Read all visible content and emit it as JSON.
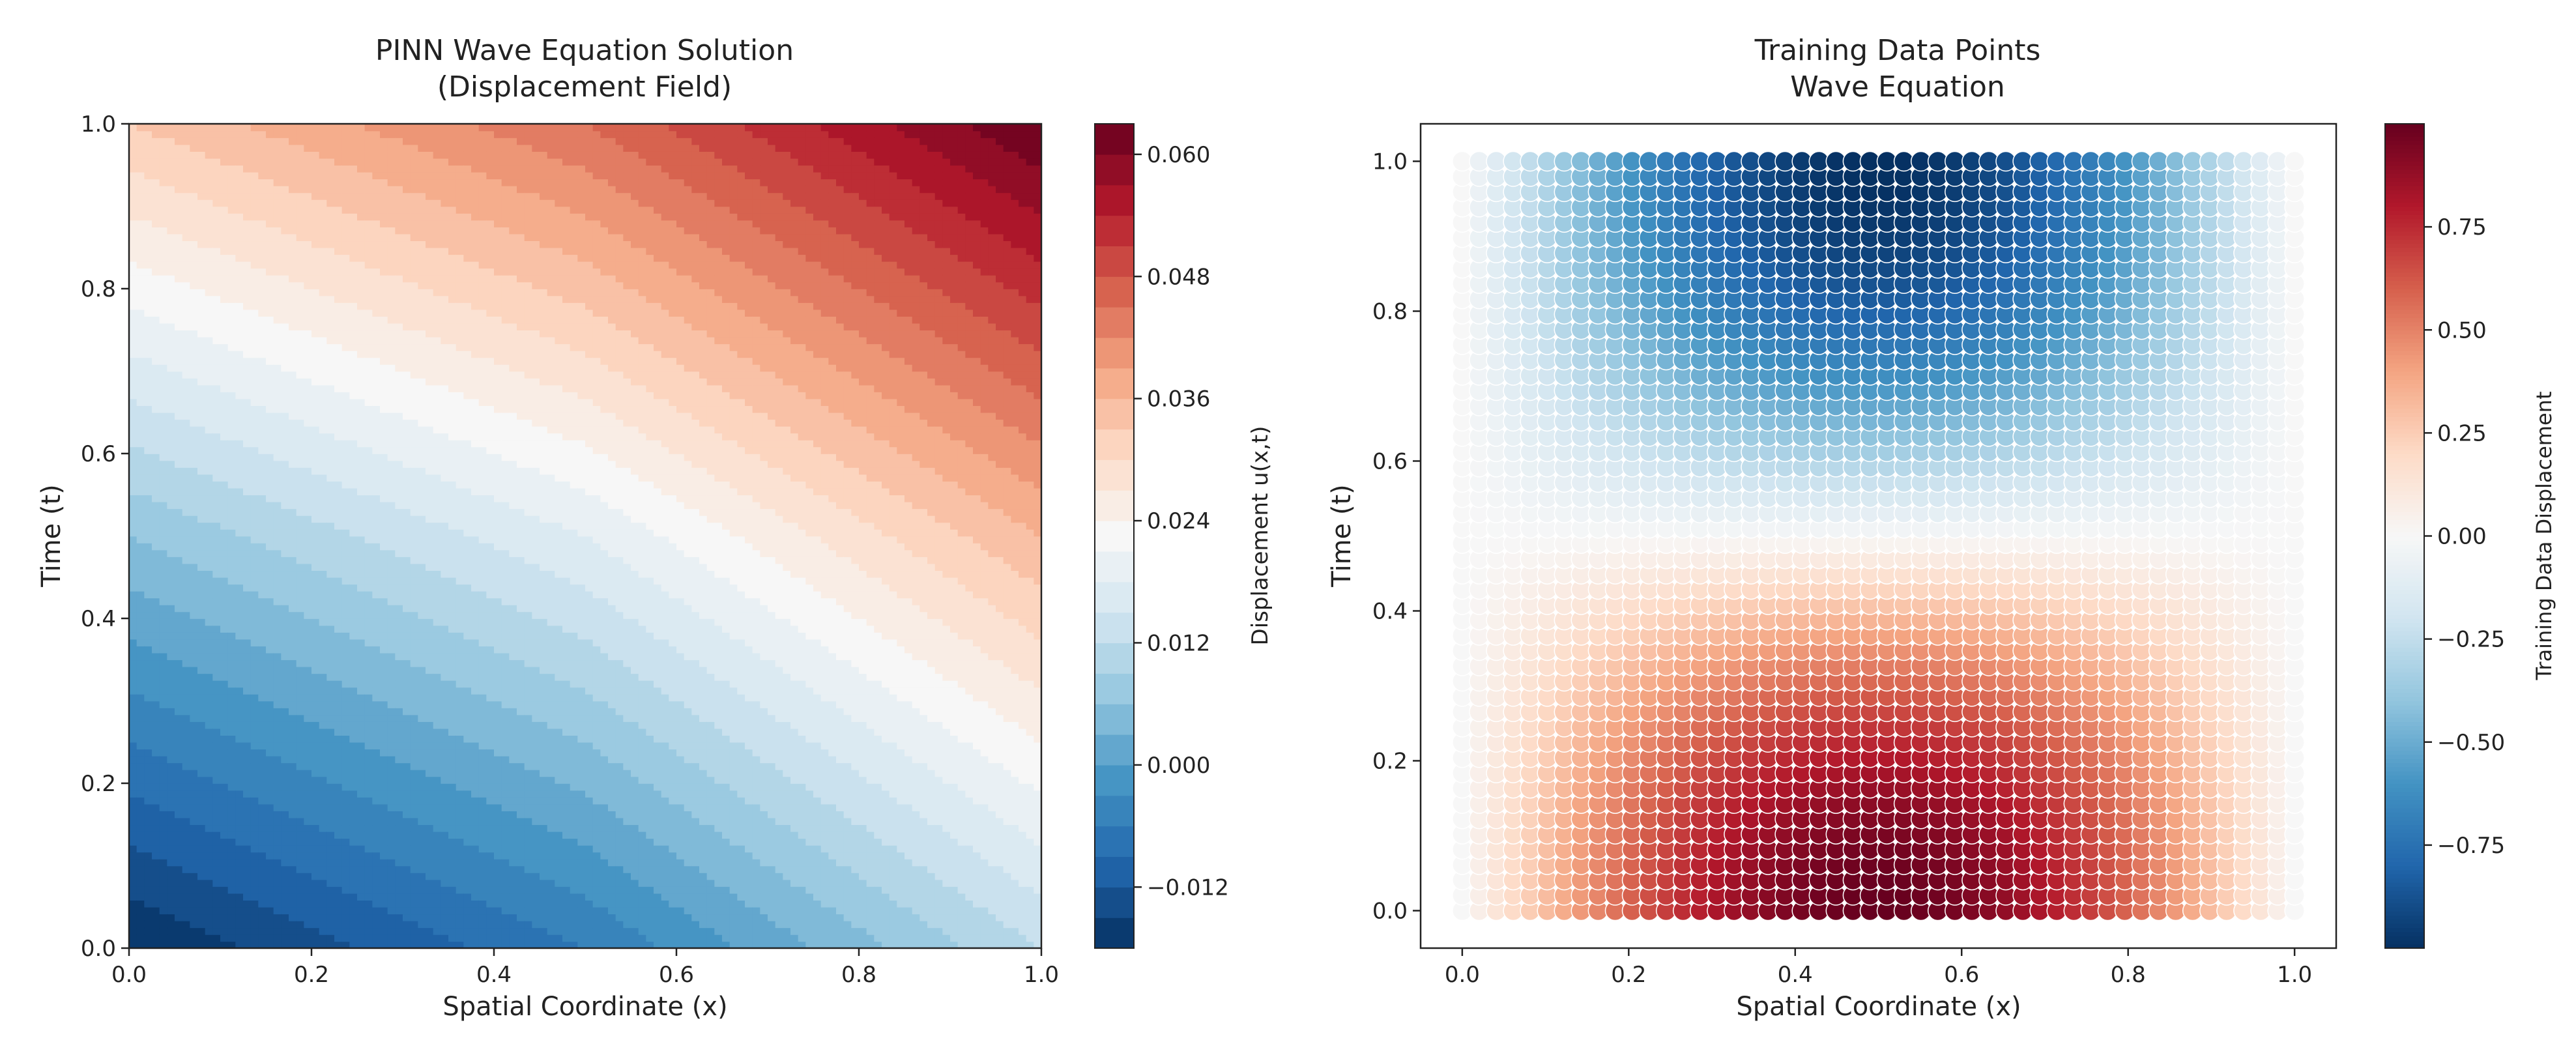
{
  "chart_data": [
    {
      "type": "heatmap",
      "title": "PINN Wave Equation Solution\n(Displacement Field)",
      "xlabel": "Spatial Coordinate (x)",
      "ylabel": "Time (t)",
      "xlim": [
        0.0,
        1.0
      ],
      "ylim": [
        0.0,
        1.0
      ],
      "x_ticks": [
        "0.0",
        "0.2",
        "0.4",
        "0.6",
        "0.8",
        "1.0"
      ],
      "y_ticks": [
        "0.0",
        "0.2",
        "0.4",
        "0.6",
        "0.8",
        "1.0"
      ],
      "colorbar": {
        "label": "Displacement u(x,t)",
        "range": [
          -0.018,
          0.063
        ],
        "ticks": [
          "−0.012",
          "0.000",
          "0.012",
          "0.024",
          "0.036",
          "0.048",
          "0.060"
        ],
        "levels": 27,
        "colormap": "RdBu_r"
      },
      "field_samples": {
        "x": [
          0.0,
          0.5,
          1.0
        ],
        "t": [
          0.0,
          0.5,
          1.0
        ],
        "u": [
          [
            -0.018,
            -0.006,
            0.012
          ],
          [
            0.006,
            0.018,
            0.036
          ],
          [
            0.033,
            0.045,
            0.063
          ]
        ]
      }
    },
    {
      "type": "scatter",
      "title": "Training Data Points\nWave Equation",
      "xlabel": "Spatial Coordinate (x)",
      "ylabel": "Time (t)",
      "xlim": [
        -0.05,
        1.05
      ],
      "ylim": [
        -0.05,
        1.05
      ],
      "x_ticks": [
        "0.0",
        "0.2",
        "0.4",
        "0.6",
        "0.8",
        "1.0"
      ],
      "y_ticks": [
        "0.0",
        "0.2",
        "0.4",
        "0.6",
        "0.8",
        "1.0"
      ],
      "points": {
        "x_range": [
          0.0,
          1.0
        ],
        "t_range": [
          0.0,
          1.0
        ],
        "nx": 50,
        "nt": 50
      },
      "value_formula": "sin(pi*x) * cos(pi*t)",
      "colorbar": {
        "label": "Training Data Displacement",
        "range": [
          -1.0,
          1.0
        ],
        "ticks": [
          "−0.75",
          "−0.50",
          "−0.25",
          "0.00",
          "0.25",
          "0.50",
          "0.75"
        ],
        "colormap": "RdBu_r"
      }
    }
  ]
}
